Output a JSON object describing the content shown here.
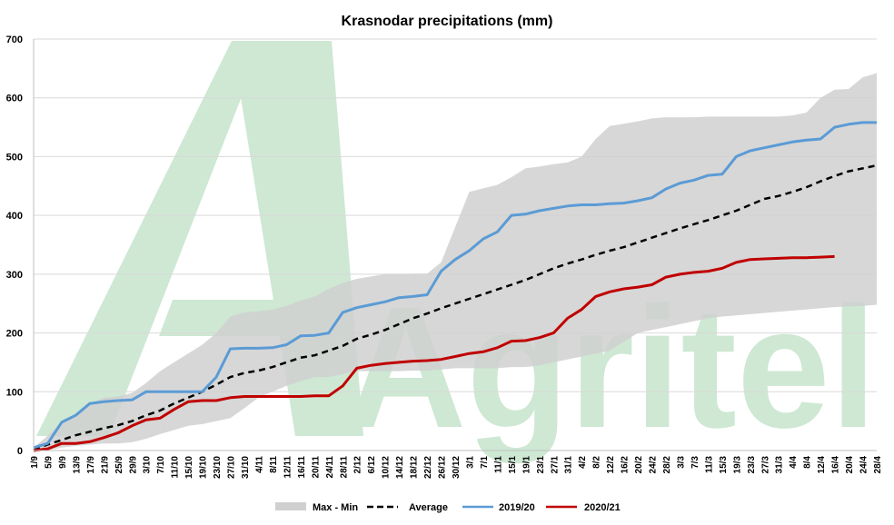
{
  "chart_data": {
    "type": "line",
    "title": "Krasnodar precipitations (mm)",
    "watermark": "Agritel",
    "ylim": [
      0,
      700
    ],
    "yticks": [
      0,
      100,
      200,
      300,
      400,
      500,
      600,
      700
    ],
    "grid": true,
    "legend_position": "bottom",
    "x_labels": [
      "1/9",
      "5/9",
      "9/9",
      "13/9",
      "17/9",
      "21/9",
      "25/9",
      "29/9",
      "3/10",
      "7/10",
      "11/10",
      "15/10",
      "19/10",
      "23/10",
      "27/10",
      "31/10",
      "4/11",
      "8/11",
      "12/11",
      "16/11",
      "20/11",
      "24/11",
      "28/11",
      "2/12",
      "6/12",
      "10/12",
      "14/12",
      "18/12",
      "22/12",
      "26/12",
      "30/12",
      "3/1",
      "7/1",
      "11/1",
      "15/1",
      "19/1",
      "23/1",
      "27/1",
      "31/1",
      "4/2",
      "8/2",
      "12/2",
      "16/2",
      "20/2",
      "24/2",
      "28/2",
      "3/3",
      "7/3",
      "11/3",
      "15/3",
      "19/3",
      "23/3",
      "27/3",
      "31/3",
      "4/4",
      "8/4",
      "12/4",
      "16/4",
      "20/4",
      "24/4",
      "28/4"
    ],
    "band": {
      "name": "Max - Min",
      "color": "#d0d0d0",
      "max": [
        5,
        25,
        48,
        62,
        80,
        90,
        92,
        98,
        115,
        135,
        150,
        165,
        180,
        200,
        228,
        235,
        237,
        240,
        246,
        255,
        262,
        275,
        285,
        292,
        296,
        300,
        300,
        301,
        301,
        320,
        380,
        440,
        446,
        452,
        465,
        480,
        483,
        487,
        490,
        500,
        530,
        552,
        556,
        560,
        565,
        567,
        567,
        567,
        568,
        568,
        568,
        568,
        568,
        568,
        570,
        575,
        600,
        614,
        615,
        635,
        642
      ],
      "min": [
        0,
        0,
        5,
        8,
        10,
        12,
        12,
        14,
        20,
        28,
        35,
        42,
        45,
        50,
        55,
        72,
        90,
        100,
        110,
        118,
        125,
        125,
        130,
        135,
        135,
        135,
        135,
        136,
        136,
        138,
        140,
        140,
        140,
        140,
        142,
        142,
        145,
        150,
        155,
        160,
        165,
        170,
        185,
        200,
        205,
        210,
        215,
        220,
        225,
        228,
        230,
        232,
        234,
        236,
        238,
        240,
        242,
        244,
        245,
        246,
        248
      ]
    },
    "series": [
      {
        "name": "Average",
        "color": "#000000",
        "dash": true,
        "values": [
          2,
          10,
          18,
          26,
          32,
          38,
          43,
          50,
          60,
          68,
          80,
          90,
          100,
          112,
          125,
          132,
          136,
          142,
          150,
          158,
          162,
          170,
          178,
          190,
          197,
          205,
          215,
          225,
          233,
          242,
          250,
          258,
          266,
          274,
          282,
          290,
          300,
          310,
          318,
          325,
          333,
          340,
          346,
          354,
          362,
          370,
          378,
          385,
          392,
          400,
          408,
          418,
          428,
          433,
          440,
          448,
          458,
          467,
          475,
          480,
          485
        ]
      },
      {
        "name": "2019/20",
        "color": "#5b9bd5",
        "dash": false,
        "values": [
          5,
          12,
          48,
          60,
          80,
          83,
          85,
          86,
          100,
          100,
          100,
          100,
          100,
          125,
          173,
          174,
          174,
          175,
          180,
          195,
          196,
          200,
          235,
          243,
          248,
          253,
          260,
          262,
          265,
          305,
          325,
          340,
          360,
          372,
          400,
          402,
          408,
          412,
          416,
          418,
          418,
          420,
          421,
          425,
          430,
          445,
          455,
          460,
          468,
          470,
          500,
          510,
          515,
          520,
          525,
          528,
          530,
          550,
          555,
          558,
          558
        ]
      },
      {
        "name": "2020/21",
        "color": "#c00000",
        "dash": false,
        "values": [
          0,
          3,
          12,
          12,
          15,
          22,
          30,
          42,
          52,
          55,
          70,
          83,
          85,
          85,
          90,
          92,
          92,
          92,
          92,
          92,
          93,
          93,
          110,
          140,
          145,
          148,
          150,
          152,
          153,
          155,
          160,
          165,
          168,
          175,
          186,
          187,
          192,
          200,
          225,
          240,
          262,
          270,
          275,
          278,
          282,
          295,
          300,
          303,
          305,
          310,
          320,
          325,
          326,
          327,
          328,
          328,
          329,
          330,
          null,
          null,
          null
        ]
      }
    ],
    "legend": [
      "Max - Min",
      "Average",
      "2019/20",
      "2020/21"
    ]
  }
}
